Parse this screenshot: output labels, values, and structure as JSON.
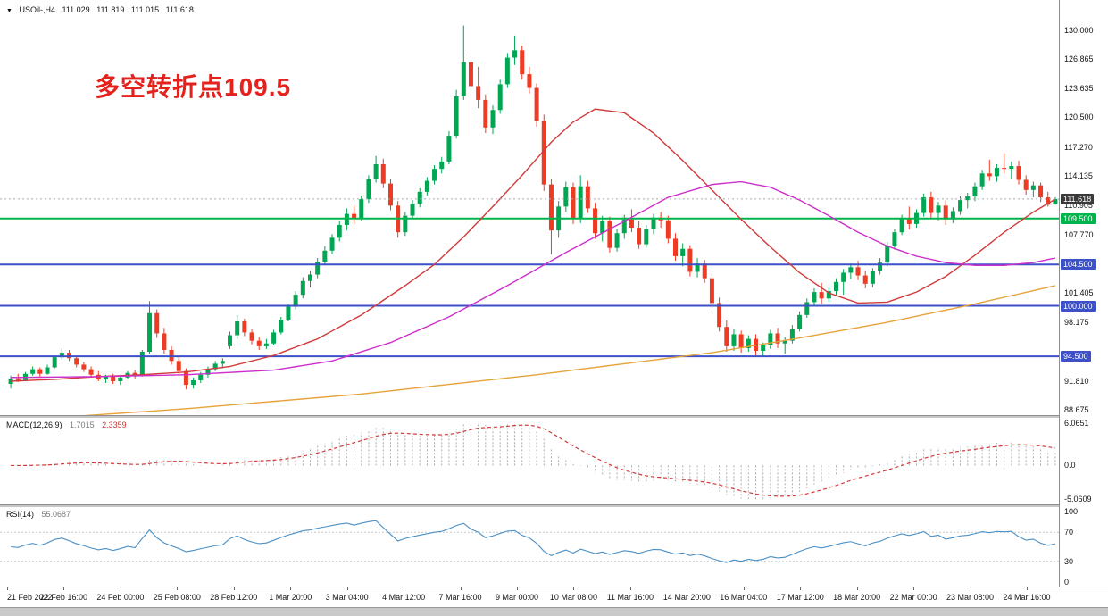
{
  "titlebar": {
    "dropdown_icon": "▼",
    "symbol": "USOil-,H4",
    "open": "111.029",
    "high": "111.819",
    "low": "111.015",
    "close": "111.618"
  },
  "annotation": {
    "text": "多空转折点109.5",
    "color": "#e4211c"
  },
  "colors": {
    "bull": "#00a651",
    "bear": "#ee3b24",
    "ma_fast": "#d03a3a",
    "ma_mid": "#cc2fcc",
    "ma_slow": "#e6a33c",
    "macd_hist": "#ababab",
    "macd_signal": "#d23b3b",
    "rsi_line": "#4a8fc4",
    "axis_text": "#141414"
  },
  "chart_data": {
    "type": "candlestick",
    "symbol": "USOil-",
    "timeframe": "H4",
    "y_range": [
      88.3,
      132.3
    ],
    "price_ticks": [
      {
        "label": "130.000",
        "value": 130.0
      },
      {
        "label": "126.865",
        "value": 126.865
      },
      {
        "label": "123.635",
        "value": 123.635
      },
      {
        "label": "120.500",
        "value": 120.5
      },
      {
        "label": "117.270",
        "value": 117.27
      },
      {
        "label": "114.135",
        "value": 114.135
      },
      {
        "label": "110.905",
        "value": 110.905
      },
      {
        "label": "107.770",
        "value": 107.77
      },
      {
        "label": "101.405",
        "value": 101.405
      },
      {
        "label": "98.175",
        "value": 98.175
      },
      {
        "label": "91.810",
        "value": 91.81
      },
      {
        "label": "88.675",
        "value": 88.675
      }
    ],
    "hlines": [
      {
        "name": "bid-price-line",
        "value": 111.618,
        "label": "111.618",
        "color": "#aaaaaa",
        "style": "dotted",
        "width": 1,
        "badge_bg": "#3a3a3a"
      },
      {
        "name": "pivot-line-109-500",
        "value": 109.5,
        "label": "109.500",
        "color": "#00b44c",
        "style": "solid",
        "width": 2,
        "badge_bg": "#00b44c"
      },
      {
        "name": "support-line-104-500",
        "value": 104.5,
        "label": "104.500",
        "color": "#3c50c8",
        "style": "solid",
        "width": 2,
        "badge_bg": "#3c50c8"
      },
      {
        "name": "support-line-100-000",
        "value": 100.0,
        "label": "100.000",
        "color": "#3c50c8",
        "style": "solid",
        "width": 2,
        "badge_bg": "#3c50c8"
      },
      {
        "name": "support-line-94-500",
        "value": 94.5,
        "label": "94.500",
        "color": "#3c50c8",
        "style": "solid",
        "width": 2,
        "badge_bg": "#3c50c8"
      }
    ],
    "time_labels": [
      "21 Feb 2022",
      "22 Feb 16:00",
      "24 Feb 00:00",
      "25 Feb 08:00",
      "28 Feb 12:00",
      "1 Mar 20:00",
      "3 Mar 04:00",
      "4 Mar 12:00",
      "7 Mar 16:00",
      "9 Mar 00:00",
      "10 Mar 08:00",
      "11 Mar 16:00",
      "14 Mar 20:00",
      "16 Mar 04:00",
      "17 Mar 12:00",
      "18 Mar 20:00",
      "22 Mar 00:00",
      "23 Mar 08:00",
      "24 Mar 16:00"
    ],
    "candles": [
      [
        91.5,
        92.4,
        91.0,
        92.1
      ],
      [
        92.1,
        92.6,
        91.7,
        91.9
      ],
      [
        91.9,
        92.8,
        91.8,
        92.6
      ],
      [
        92.6,
        93.4,
        92.4,
        93.1
      ],
      [
        93.1,
        93.3,
        92.3,
        92.6
      ],
      [
        92.6,
        93.6,
        92.5,
        93.3
      ],
      [
        93.3,
        94.6,
        93.2,
        94.4
      ],
      [
        94.4,
        95.4,
        94.1,
        94.9
      ],
      [
        94.9,
        95.2,
        94.0,
        94.3
      ],
      [
        94.3,
        94.5,
        93.3,
        93.6
      ],
      [
        93.6,
        93.9,
        92.8,
        93.1
      ],
      [
        93.1,
        93.4,
        92.2,
        92.5
      ],
      [
        92.5,
        92.9,
        91.8,
        92.0
      ],
      [
        92.0,
        92.5,
        91.6,
        92.3
      ],
      [
        92.3,
        92.6,
        91.5,
        91.8
      ],
      [
        91.8,
        92.4,
        91.4,
        92.2
      ],
      [
        92.2,
        92.9,
        92.0,
        92.7
      ],
      [
        92.7,
        93.0,
        92.1,
        92.4
      ],
      [
        92.4,
        95.2,
        92.3,
        95.0
      ],
      [
        95.0,
        100.5,
        94.8,
        99.2
      ],
      [
        99.2,
        99.6,
        96.5,
        97.0
      ],
      [
        97.0,
        97.6,
        94.8,
        95.2
      ],
      [
        95.2,
        95.6,
        93.6,
        94.0
      ],
      [
        94.0,
        94.4,
        92.6,
        92.9
      ],
      [
        92.9,
        93.2,
        90.9,
        91.4
      ],
      [
        91.4,
        92.2,
        91.0,
        91.9
      ],
      [
        91.9,
        92.8,
        91.6,
        92.5
      ],
      [
        92.5,
        93.4,
        92.2,
        93.1
      ],
      [
        93.1,
        94.0,
        92.9,
        93.7
      ],
      [
        93.7,
        94.3,
        93.2,
        94.0
      ],
      [
        95.6,
        97.2,
        95.3,
        96.8
      ],
      [
        96.8,
        99.0,
        96.4,
        98.3
      ],
      [
        98.3,
        98.6,
        96.7,
        97.1
      ],
      [
        97.1,
        97.5,
        95.8,
        96.2
      ],
      [
        96.2,
        96.6,
        95.2,
        95.6
      ],
      [
        95.6,
        96.4,
        95.3,
        95.9
      ],
      [
        95.9,
        97.4,
        95.7,
        97.1
      ],
      [
        97.1,
        98.8,
        96.9,
        98.5
      ],
      [
        98.5,
        100.2,
        98.3,
        99.9
      ],
      [
        99.9,
        101.6,
        99.6,
        101.2
      ],
      [
        101.2,
        103.1,
        100.8,
        102.7
      ],
      [
        102.7,
        103.8,
        102.0,
        103.4
      ],
      [
        103.4,
        105.2,
        103.0,
        104.8
      ],
      [
        104.8,
        106.5,
        104.4,
        106.0
      ],
      [
        106.0,
        107.8,
        105.6,
        107.4
      ],
      [
        107.4,
        109.2,
        107.0,
        108.8
      ],
      [
        108.8,
        110.6,
        108.2,
        110.0
      ],
      [
        110.0,
        110.9,
        108.9,
        109.5
      ],
      [
        109.5,
        112.0,
        109.2,
        111.6
      ],
      [
        111.6,
        114.2,
        111.2,
        113.8
      ],
      [
        113.8,
        116.3,
        113.4,
        115.4
      ],
      [
        115.4,
        116.0,
        112.8,
        113.3
      ],
      [
        113.3,
        113.8,
        110.4,
        110.9
      ],
      [
        110.9,
        111.4,
        107.4,
        108.0
      ],
      [
        108.0,
        110.2,
        107.6,
        109.8
      ],
      [
        109.8,
        111.5,
        109.4,
        111.1
      ],
      [
        111.1,
        112.8,
        110.7,
        112.4
      ],
      [
        112.4,
        114.0,
        112.0,
        113.6
      ],
      [
        113.6,
        115.3,
        113.2,
        114.9
      ],
      [
        114.9,
        116.2,
        114.4,
        115.7
      ],
      [
        115.7,
        119.0,
        115.4,
        118.5
      ],
      [
        118.5,
        123.5,
        118.2,
        122.8
      ],
      [
        122.8,
        130.5,
        122.4,
        126.5
      ],
      [
        126.5,
        127.2,
        122.8,
        123.9
      ],
      [
        123.9,
        126.0,
        121.5,
        122.4
      ],
      [
        122.4,
        123.0,
        118.8,
        119.4
      ],
      [
        119.4,
        121.8,
        118.7,
        121.3
      ],
      [
        121.3,
        124.6,
        120.9,
        124.1
      ],
      [
        124.1,
        127.5,
        123.7,
        127.0
      ],
      [
        127.0,
        129.4,
        126.2,
        127.8
      ],
      [
        127.8,
        128.3,
        124.6,
        125.2
      ],
      [
        125.2,
        126.0,
        123.1,
        123.7
      ],
      [
        123.7,
        124.2,
        119.5,
        120.1
      ],
      [
        120.1,
        120.8,
        112.5,
        113.2
      ],
      [
        113.2,
        113.8,
        105.6,
        108.2
      ],
      [
        108.2,
        111.4,
        107.4,
        110.8
      ],
      [
        110.8,
        113.5,
        110.2,
        112.9
      ],
      [
        112.9,
        113.4,
        108.9,
        109.5
      ],
      [
        109.5,
        114.2,
        109.0,
        113.0
      ],
      [
        113.0,
        113.6,
        110.1,
        110.6
      ],
      [
        110.6,
        111.2,
        107.3,
        107.9
      ],
      [
        107.9,
        109.8,
        107.0,
        109.2
      ],
      [
        109.2,
        109.7,
        105.8,
        106.3
      ],
      [
        106.3,
        108.4,
        105.9,
        107.9
      ],
      [
        107.9,
        109.9,
        107.3,
        109.4
      ],
      [
        109.4,
        110.5,
        108.0,
        108.5
      ],
      [
        108.5,
        109.2,
        106.2,
        106.7
      ],
      [
        106.7,
        108.8,
        106.3,
        108.4
      ],
      [
        108.4,
        110.0,
        107.8,
        109.6
      ],
      [
        109.6,
        110.2,
        108.5,
        109.3
      ],
      [
        109.3,
        109.8,
        106.8,
        107.3
      ],
      [
        107.3,
        107.9,
        104.9,
        105.4
      ],
      [
        105.4,
        106.8,
        104.3,
        106.2
      ],
      [
        106.2,
        106.6,
        103.2,
        103.7
      ],
      [
        103.7,
        105.2,
        103.1,
        104.6
      ],
      [
        104.6,
        105.0,
        102.5,
        103.0
      ],
      [
        103.0,
        103.5,
        99.8,
        100.3
      ],
      [
        100.3,
        100.9,
        97.2,
        97.7
      ],
      [
        97.7,
        98.4,
        95.0,
        95.6
      ],
      [
        95.6,
        97.5,
        95.1,
        96.9
      ],
      [
        96.9,
        97.3,
        94.9,
        95.4
      ],
      [
        95.4,
        96.8,
        95.0,
        96.4
      ],
      [
        96.4,
        96.9,
        94.6,
        95.1
      ],
      [
        95.1,
        96.0,
        94.5,
        95.7
      ],
      [
        95.7,
        97.4,
        95.3,
        97.0
      ],
      [
        97.0,
        97.6,
        95.4,
        95.9
      ],
      [
        95.9,
        96.6,
        94.8,
        96.2
      ],
      [
        96.2,
        97.9,
        95.9,
        97.5
      ],
      [
        97.5,
        99.4,
        97.2,
        99.0
      ],
      [
        99.0,
        100.8,
        98.7,
        100.4
      ],
      [
        100.4,
        101.9,
        100.0,
        101.5
      ],
      [
        101.5,
        102.5,
        100.2,
        100.8
      ],
      [
        100.8,
        102.0,
        100.4,
        101.6
      ],
      [
        101.6,
        103.0,
        101.2,
        102.6
      ],
      [
        102.6,
        104.0,
        101.2,
        103.6
      ],
      [
        103.6,
        104.6,
        102.9,
        104.2
      ],
      [
        104.2,
        104.9,
        102.8,
        103.3
      ],
      [
        103.3,
        103.8,
        101.9,
        102.4
      ],
      [
        102.4,
        104.1,
        102.0,
        103.8
      ],
      [
        103.8,
        105.2,
        103.4,
        104.7
      ],
      [
        104.7,
        106.9,
        104.3,
        106.5
      ],
      [
        106.5,
        108.4,
        106.1,
        108.0
      ],
      [
        108.0,
        109.9,
        107.7,
        109.5
      ],
      [
        109.5,
        110.8,
        108.3,
        108.9
      ],
      [
        108.9,
        110.5,
        108.5,
        110.1
      ],
      [
        110.1,
        112.2,
        109.7,
        111.8
      ],
      [
        111.8,
        112.4,
        109.6,
        110.1
      ],
      [
        110.1,
        111.3,
        109.3,
        110.9
      ],
      [
        110.9,
        111.5,
        108.8,
        109.4
      ],
      [
        109.4,
        110.7,
        109.0,
        110.3
      ],
      [
        110.3,
        111.9,
        109.9,
        111.5
      ],
      [
        111.5,
        112.3,
        110.6,
        111.9
      ],
      [
        111.9,
        113.4,
        111.4,
        113.0
      ],
      [
        113.0,
        114.8,
        112.6,
        114.4
      ],
      [
        114.4,
        115.9,
        113.6,
        114.1
      ],
      [
        114.1,
        115.4,
        113.5,
        115.0
      ],
      [
        115.0,
        116.6,
        114.4,
        114.9
      ],
      [
        114.9,
        115.7,
        113.8,
        115.2
      ],
      [
        115.2,
        115.8,
        113.2,
        113.7
      ],
      [
        113.7,
        114.2,
        112.1,
        112.6
      ],
      [
        112.6,
        113.5,
        111.8,
        113.1
      ],
      [
        113.1,
        113.4,
        111.3,
        111.8
      ],
      [
        111.8,
        112.4,
        110.8,
        111.0
      ],
      [
        111.029,
        111.819,
        111.015,
        111.618
      ]
    ],
    "moving_averages": [
      {
        "name": "fast-red",
        "color_key": "ma_fast",
        "points": [
          [
            0,
            91.8
          ],
          [
            6,
            92.0
          ],
          [
            12,
            92.3
          ],
          [
            18,
            92.5
          ],
          [
            24,
            92.8
          ],
          [
            30,
            93.4
          ],
          [
            36,
            94.6
          ],
          [
            42,
            96.4
          ],
          [
            48,
            99.0
          ],
          [
            54,
            102.2
          ],
          [
            58,
            104.5
          ],
          [
            62,
            107.5
          ],
          [
            66,
            110.8
          ],
          [
            70,
            114.2
          ],
          [
            74,
            117.8
          ],
          [
            77,
            120.0
          ],
          [
            80,
            121.4
          ],
          [
            84,
            121.0
          ],
          [
            88,
            118.8
          ],
          [
            92,
            115.8
          ],
          [
            96,
            112.6
          ],
          [
            100,
            109.4
          ],
          [
            104,
            106.4
          ],
          [
            108,
            103.6
          ],
          [
            112,
            101.4
          ],
          [
            116,
            100.3
          ],
          [
            120,
            100.4
          ],
          [
            124,
            101.5
          ],
          [
            128,
            103.2
          ],
          [
            132,
            105.5
          ],
          [
            136,
            108.0
          ],
          [
            140,
            110.2
          ],
          [
            143,
            111.6
          ]
        ]
      },
      {
        "name": "mid-magenta",
        "color_key": "ma_mid",
        "points": [
          [
            0,
            92.2
          ],
          [
            12,
            92.3
          ],
          [
            24,
            92.5
          ],
          [
            36,
            93.0
          ],
          [
            44,
            94.0
          ],
          [
            52,
            96.0
          ],
          [
            60,
            98.8
          ],
          [
            68,
            102.2
          ],
          [
            76,
            105.8
          ],
          [
            84,
            109.2
          ],
          [
            90,
            111.8
          ],
          [
            96,
            113.2
          ],
          [
            100,
            113.5
          ],
          [
            104,
            112.9
          ],
          [
            108,
            111.5
          ],
          [
            112,
            109.8
          ],
          [
            116,
            108.0
          ],
          [
            120,
            106.5
          ],
          [
            124,
            105.4
          ],
          [
            128,
            104.7
          ],
          [
            132,
            104.4
          ],
          [
            136,
            104.4
          ],
          [
            140,
            104.7
          ],
          [
            143,
            105.2
          ]
        ]
      },
      {
        "name": "slow-orange",
        "color_key": "ma_slow",
        "points": [
          [
            0,
            87.5
          ],
          [
            24,
            88.8
          ],
          [
            48,
            90.4
          ],
          [
            72,
            92.5
          ],
          [
            96,
            94.9
          ],
          [
            108,
            96.5
          ],
          [
            120,
            98.2
          ],
          [
            132,
            100.2
          ],
          [
            143,
            102.2
          ]
        ]
      }
    ],
    "macd": {
      "label": "MACD(12,26,9)",
      "main_value": "1.7015",
      "signal_value": "2.3359",
      "axis_top": "6.0651",
      "axis_zero": "0.0",
      "axis_bottom": "-5.0609",
      "params": [
        12,
        26,
        9
      ]
    },
    "rsi": {
      "label": "RSI(14)",
      "value": "55.0687",
      "period": 14,
      "axis_top": "100",
      "level_high": "70",
      "level_low": "30",
      "axis_bottom": "0"
    }
  }
}
